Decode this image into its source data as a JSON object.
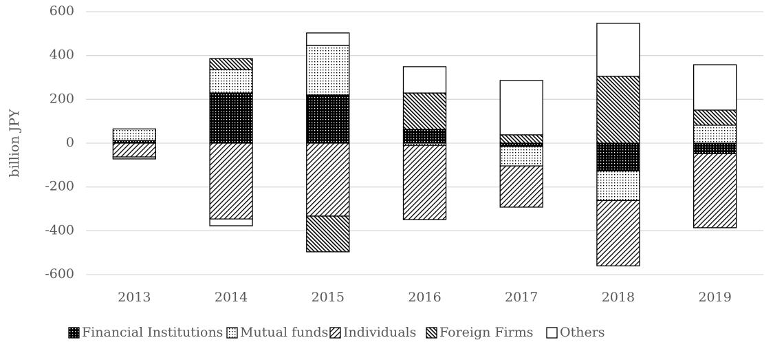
{
  "chart_data": {
    "type": "stacked-bar",
    "y_label": "billion JPY",
    "categories": [
      "2013",
      "2014",
      "2015",
      "2016",
      "2017",
      "2018",
      "2019"
    ],
    "series": [
      {
        "name": "Financial Institutions",
        "color": "#000000",
        "pattern": "grid",
        "values": [
          12,
          229,
          220,
          63,
          -15,
          -127,
          -48
        ]
      },
      {
        "name": "Mutual funds",
        "color": "#000000",
        "pattern": "dots",
        "values": [
          53,
          106,
          226,
          -10,
          -89,
          -135,
          82
        ]
      },
      {
        "name": "Individuals",
        "color": "#000000",
        "pattern": "hatch",
        "values": [
          -63,
          -346,
          -333,
          -339,
          -188,
          -298,
          -338
        ]
      },
      {
        "name": "Foreign Firms",
        "color": "#000000",
        "pattern": "backhatch",
        "values": [
          0,
          51,
          -163,
          166,
          38,
          305,
          69
        ]
      },
      {
        "name": "Others",
        "color": "#000000",
        "pattern": "none",
        "values": [
          -9,
          -31,
          57,
          120,
          248,
          242,
          207
        ]
      }
    ],
    "ylim": [
      -600,
      600
    ],
    "yticks": [
      -600,
      -400,
      -200,
      0,
      200,
      400,
      600
    ],
    "grid": true,
    "legend": "bottom"
  }
}
